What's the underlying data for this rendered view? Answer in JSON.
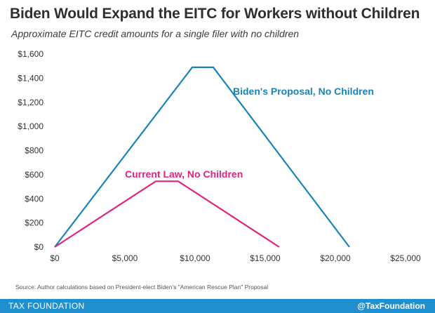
{
  "header": {
    "title": "Biden Would Expand the EITC for Workers without Children",
    "subtitle": "Approximate EITC credit amounts for a single filer with no children"
  },
  "chart_data": {
    "type": "line",
    "title": "Biden Would Expand the EITC for Workers without Children",
    "subtitle": "Approximate EITC credit amounts for a single filer with no children",
    "xlabel": "",
    "ylabel": "",
    "xlim": [
      0,
      25000
    ],
    "ylim": [
      0,
      1600
    ],
    "grid": false,
    "x_ticks": [
      "$0",
      "$5,000",
      "$10,000",
      "$15,000",
      "$20,000",
      "$25,000"
    ],
    "y_ticks": [
      "$0",
      "$200",
      "$400",
      "$600",
      "$800",
      "$1,000",
      "$1,200",
      "$1,400",
      "$1,600"
    ],
    "series": [
      {
        "name": "Biden's Proposal, No Children",
        "color": "#1a84b8",
        "x": [
          0,
          9800,
          11300,
          21000
        ],
        "y": [
          0,
          1490,
          1490,
          0
        ]
      },
      {
        "name": "Current Law, No Children",
        "color": "#e2237e",
        "x": [
          0,
          7200,
          8800,
          16000
        ],
        "y": [
          0,
          545,
          545,
          0
        ]
      }
    ]
  },
  "source": "Source: Author calculations based on President-elect Biden's \"American Rescue Plan\" Proposal",
  "footer": {
    "brand": "TAX FOUNDATION",
    "handle": "@TaxFoundation"
  }
}
